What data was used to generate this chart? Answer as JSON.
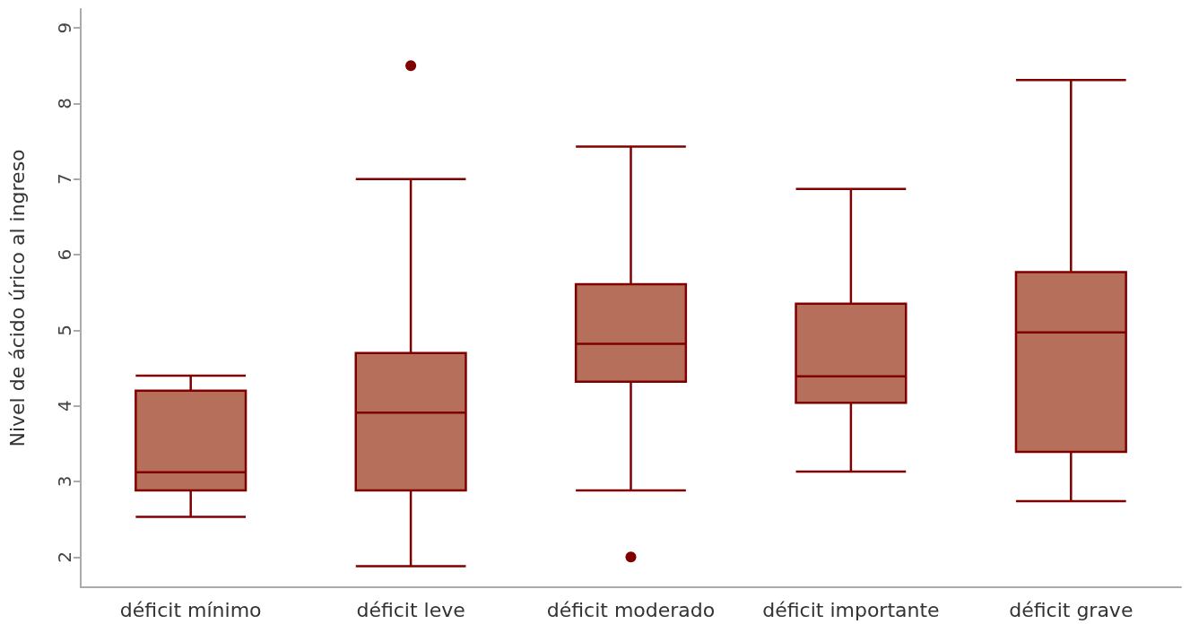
{
  "chart_data": {
    "type": "box",
    "ylabel": "Nivel de ácido úrico al ingreso",
    "categories": [
      "déficit mínimo",
      "déficit leve",
      "déficit moderado",
      "déficit importante",
      "déficit grave"
    ],
    "series": [
      {
        "color": "#800000",
        "boxes": [
          {
            "low": 2.53,
            "q1": 2.88,
            "median": 3.12,
            "q3": 4.2,
            "high": 4.4
          },
          {
            "low": 1.88,
            "q1": 2.88,
            "median": 3.91,
            "q3": 4.7,
            "high": 7.0,
            "outliers": [
              8.5
            ]
          },
          {
            "low": 2.88,
            "q1": 4.32,
            "median": 4.82,
            "q3": 5.61,
            "high": 7.43,
            "outliers": [
              2.0
            ]
          },
          {
            "low": 3.13,
            "q1": 4.04,
            "median": 4.39,
            "q3": 5.35,
            "high": 6.87
          },
          {
            "low": 2.74,
            "q1": 3.39,
            "median": 4.97,
            "q3": 5.77,
            "high": 8.31
          }
        ]
      }
    ],
    "ylim": [
      1.6,
      9.25
    ],
    "yticks": [
      2,
      3,
      4,
      5,
      6,
      7,
      8,
      9
    ],
    "grid": false
  }
}
